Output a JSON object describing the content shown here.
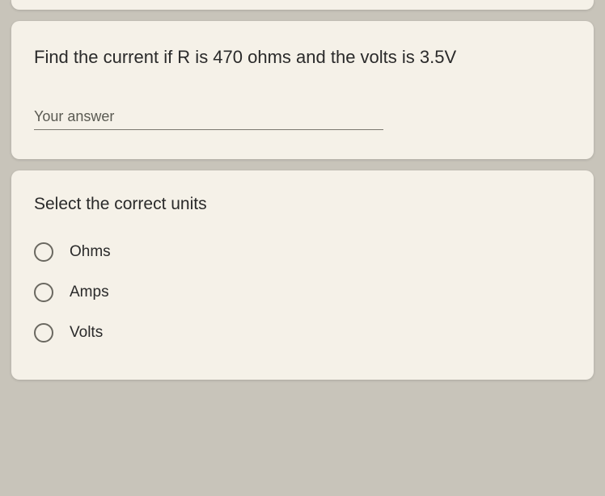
{
  "card1": {
    "question": "Find the current if R is 470 ohms and the volts is 3.5V",
    "answer_placeholder": "Your answer",
    "answer_value": ""
  },
  "card2": {
    "prompt": "Select the correct units",
    "options": [
      {
        "label": "Ohms"
      },
      {
        "label": "Amps"
      },
      {
        "label": "Volts"
      }
    ]
  },
  "colors": {
    "page_background": "#c8c4ba",
    "card_background": "#f5f1e8",
    "text_primary": "#2a2a2a",
    "text_secondary": "#5a5a52",
    "radio_border": "#6a6860",
    "underline": "#7a786f"
  }
}
